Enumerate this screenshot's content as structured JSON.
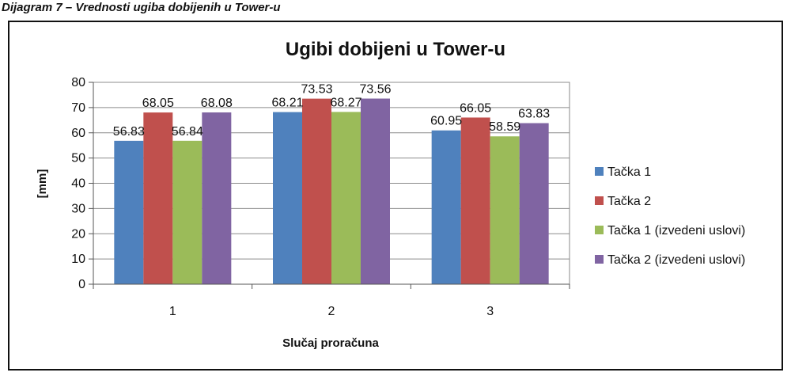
{
  "caption": "Dijagram 7 – Vrednosti ugiba dobijenih u Tower-u",
  "chart_data": {
    "type": "bar",
    "title": "Ugibi dobijeni u Tower-u",
    "xlabel": "Slučaj proračuna",
    "ylabel": "[mm]",
    "categories": [
      "1",
      "2",
      "3"
    ],
    "ylim": [
      0,
      80
    ],
    "yticks": [
      0,
      10,
      20,
      30,
      40,
      50,
      60,
      70,
      80
    ],
    "grid": true,
    "legend_position": "right",
    "series": [
      {
        "name": "Tačka 1",
        "color": "#4F81BD",
        "values": [
          56.83,
          68.21,
          60.95
        ]
      },
      {
        "name": "Tačka 2",
        "color": "#C0504D",
        "values": [
          68.05,
          73.53,
          66.05
        ]
      },
      {
        "name": "Tačka 1 (izvedeni uslovi)",
        "color": "#9BBB59",
        "values": [
          56.84,
          68.27,
          58.59
        ]
      },
      {
        "name": "Tačka 2 (izvedeni uslovi)",
        "color": "#8064A2",
        "values": [
          68.08,
          73.56,
          63.83
        ]
      }
    ]
  }
}
